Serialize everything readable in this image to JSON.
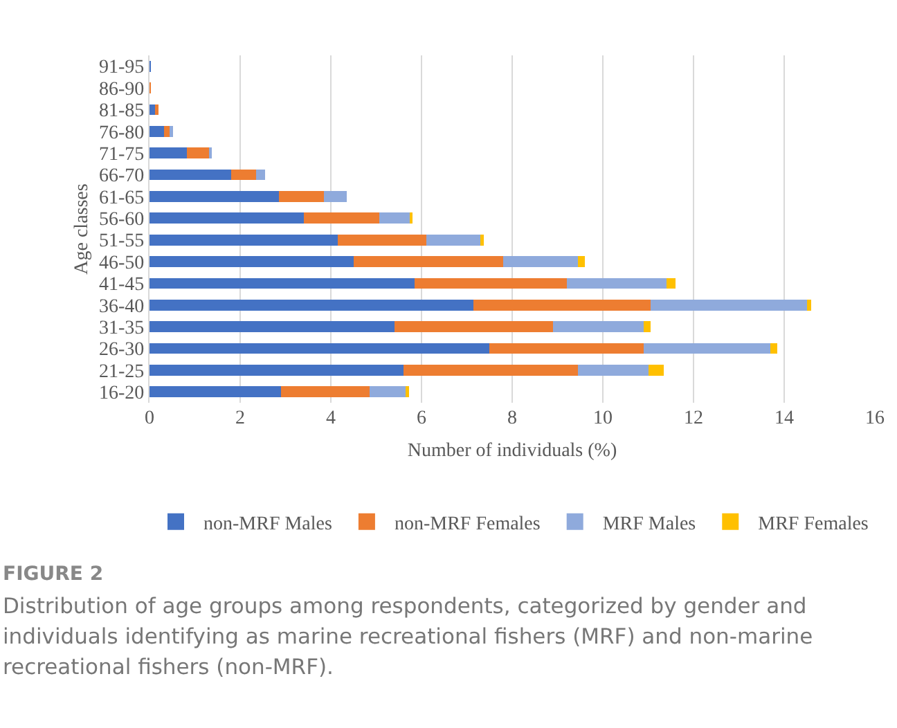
{
  "chart_data": {
    "type": "bar",
    "orientation": "horizontal",
    "stacked": true,
    "categories": [
      "91-95",
      "86-90",
      "81-85",
      "76-80",
      "71-75",
      "66-70",
      "61-65",
      "56-60",
      "51-55",
      "46-50",
      "41-45",
      "36-40",
      "31-35",
      "26-30",
      "21-25",
      "16-20"
    ],
    "series": [
      {
        "name": "non-MRF Males",
        "color": "#4472c4",
        "values": [
          0.03,
          0,
          0.12,
          0.32,
          0.82,
          1.8,
          2.85,
          3.4,
          4.15,
          4.5,
          5.85,
          7.15,
          5.4,
          7.5,
          5.6,
          2.9
        ]
      },
      {
        "name": "non-MRF Females",
        "color": "#ed7d31",
        "values": [
          0,
          0.03,
          0.08,
          0.13,
          0.5,
          0.55,
          1.0,
          1.67,
          1.95,
          3.3,
          3.35,
          3.9,
          3.5,
          3.4,
          3.85,
          1.95
        ]
      },
      {
        "name": "MRF Males",
        "color": "#8faadc",
        "values": [
          0,
          0,
          0,
          0.07,
          0.03,
          0.2,
          0.5,
          0.7,
          1.2,
          1.65,
          2.2,
          3.45,
          2.0,
          2.8,
          1.55,
          0.8
        ]
      },
      {
        "name": "MRF Females",
        "color": "#ffc000",
        "values": [
          0,
          0,
          0,
          0,
          0,
          0,
          0,
          0.03,
          0.07,
          0.15,
          0.2,
          0.1,
          0.15,
          0.15,
          0.35,
          0.07
        ]
      }
    ],
    "xlim": [
      0,
      16
    ],
    "xticks": [
      0,
      2,
      4,
      6,
      8,
      10,
      12,
      14,
      16
    ],
    "xlabel": "Number of individuals (%)",
    "ylabel": "Age classes",
    "grid": "x",
    "legend": "bottom",
    "annotations": [
      "FIGURE 2",
      "Distribution of age groups among respondents, categorized by gender and individuals identifying as marine recreational fishers (MRF) and non-marine recreational fishers (non-MRF)."
    ]
  }
}
